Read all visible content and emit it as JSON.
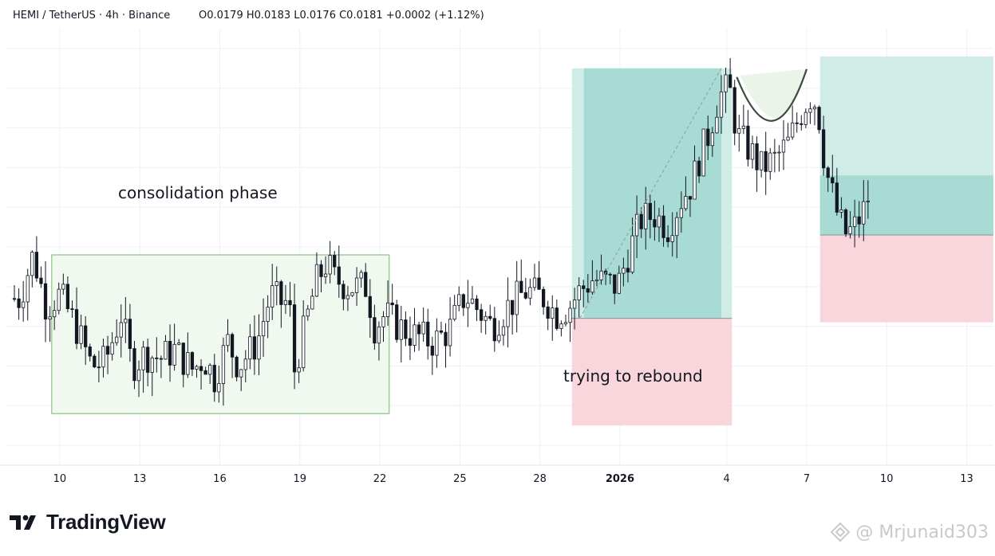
{
  "header": {
    "symbol": "HEMI / TetherUS · 4h · Binance",
    "ohlc": "O0.0179  H0.0183  L0.0176  C0.0181  +0.0002 (+1.12%)"
  },
  "annotations": {
    "consolidation": "consolidation phase",
    "rebound": "trying to rebound"
  },
  "branding": {
    "logo_text": "TradingView",
    "watermark": "@ Mrjunaid303"
  },
  "colors": {
    "up": "#ffffff",
    "down": "#131722",
    "wick": "#131722",
    "profit_zone": "#a8dbd3",
    "profit_zone_light": "#cfece7",
    "loss_zone": "#f9d5dc",
    "consolidation_fill": "#f1f8ef",
    "consolidation_border": "#8fbf86",
    "grid": "#eef0f3"
  },
  "chart_data": {
    "type": "candlestick",
    "title": "HEMI / TetherUS · 4h · Binance",
    "x_tick_labels": [
      "10",
      "13",
      "16",
      "19",
      "22",
      "25",
      "28",
      "2026",
      "4",
      "7",
      "10",
      "13"
    ],
    "x_tick_days": [
      10,
      13,
      16,
      19,
      22,
      25,
      28,
      31,
      35,
      38,
      41,
      44
    ],
    "x_tick_bold": [
      false,
      false,
      false,
      false,
      false,
      false,
      false,
      true,
      false,
      false,
      false,
      false
    ],
    "x_range_days": [
      8,
      45
    ],
    "y_range": [
      0.0105,
      0.0215
    ],
    "grid": true,
    "last_close": 0.0181,
    "anchors": [
      [
        8.5,
        0.0147
      ],
      [
        9.0,
        0.0158
      ],
      [
        9.5,
        0.0145
      ],
      [
        10.0,
        0.0148
      ],
      [
        10.6,
        0.014
      ],
      [
        11.2,
        0.013
      ],
      [
        11.7,
        0.0131
      ],
      [
        12.0,
        0.0137
      ],
      [
        12.3,
        0.0143
      ],
      [
        12.7,
        0.013
      ],
      [
        13.2,
        0.0133
      ],
      [
        13.8,
        0.0132
      ],
      [
        14.3,
        0.0134
      ],
      [
        15.0,
        0.0129
      ],
      [
        15.4,
        0.0132
      ],
      [
        15.8,
        0.0127
      ],
      [
        16.3,
        0.0136
      ],
      [
        16.7,
        0.013
      ],
      [
        17.4,
        0.0136
      ],
      [
        17.9,
        0.0148
      ],
      [
        18.3,
        0.0146
      ],
      [
        18.6,
        0.0146
      ],
      [
        18.8,
        0.0129
      ],
      [
        19.2,
        0.014
      ],
      [
        19.6,
        0.0151
      ],
      [
        20.0,
        0.0156
      ],
      [
        20.3,
        0.0152
      ],
      [
        20.8,
        0.015
      ],
      [
        21.5,
        0.015
      ],
      [
        21.8,
        0.014
      ],
      [
        22.2,
        0.0143
      ],
      [
        22.7,
        0.014
      ],
      [
        23.2,
        0.0138
      ],
      [
        24.0,
        0.0136
      ],
      [
        24.6,
        0.0139
      ],
      [
        25.2,
        0.0148
      ],
      [
        25.7,
        0.0144
      ],
      [
        26.2,
        0.014
      ],
      [
        26.8,
        0.0145
      ],
      [
        27.5,
        0.0149
      ],
      [
        28.2,
        0.0147
      ],
      [
        28.6,
        0.0143
      ],
      [
        29.1,
        0.0145
      ],
      [
        29.5,
        0.0149
      ],
      [
        30.0,
        0.0152
      ],
      [
        30.5,
        0.0151
      ],
      [
        30.9,
        0.015
      ],
      [
        31.3,
        0.0158
      ],
      [
        31.8,
        0.0167
      ],
      [
        32.3,
        0.0168
      ],
      [
        32.8,
        0.0165
      ],
      [
        33.3,
        0.0172
      ],
      [
        33.7,
        0.0176
      ],
      [
        34.0,
        0.0183
      ],
      [
        34.3,
        0.0188
      ],
      [
        34.7,
        0.0198
      ],
      [
        35.1,
        0.02
      ],
      [
        35.4,
        0.0188
      ],
      [
        35.8,
        0.0185
      ],
      [
        36.3,
        0.018
      ],
      [
        36.8,
        0.0182
      ],
      [
        37.3,
        0.0186
      ],
      [
        37.8,
        0.0194
      ],
      [
        38.1,
        0.0198
      ],
      [
        38.4,
        0.0196
      ],
      [
        38.7,
        0.018
      ],
      [
        39.2,
        0.0167
      ],
      [
        39.5,
        0.0163
      ],
      [
        39.8,
        0.0165
      ],
      [
        40.2,
        0.017
      ],
      [
        40.4,
        0.0175
      ]
    ],
    "position_1": {
      "start_day": 29.2,
      "end_day": 35.2,
      "entry": 0.0142,
      "target": 0.0205,
      "stop": 0.0115,
      "price_path_end_day": 34.8
    },
    "position_2": {
      "start_day": 38.5,
      "end_day": 45,
      "entry": 0.0163,
      "target": 0.0208,
      "stop": 0.0141,
      "filled_up_to": 0.0178
    },
    "consolidation_box": {
      "start_day": 9.7,
      "end_day": 22.35,
      "high": 0.0158,
      "low": 0.0118
    },
    "cup_pattern": {
      "start_day": 35.5,
      "end_day": 38.0,
      "rim": 0.0202,
      "bottom": 0.0187
    }
  }
}
